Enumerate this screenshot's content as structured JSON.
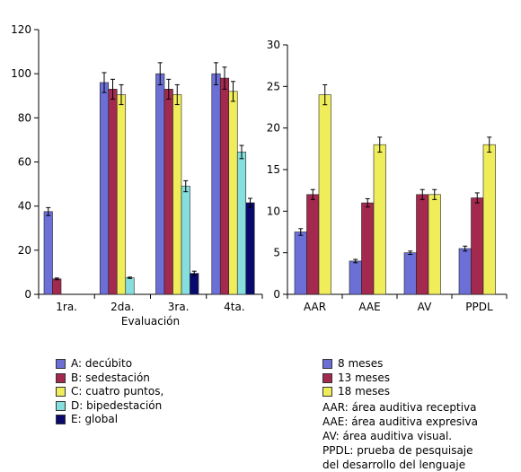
{
  "chart_data": [
    {
      "type": "bar",
      "categories": [
        "1ra.",
        "2da.",
        "3ra.",
        "4ta."
      ],
      "xlabel": "Evaluación",
      "ylabel": "",
      "ylim": [
        0,
        120
      ],
      "yticks": [
        0,
        20,
        40,
        60,
        80,
        100,
        120
      ],
      "grid": false,
      "series": [
        {
          "name": "A: decúbito",
          "color": "#6b6fd6",
          "values": [
            37.5,
            96,
            100,
            100
          ],
          "errors": [
            1.8,
            4.5,
            5,
            5
          ]
        },
        {
          "name": "B: sedestación",
          "color": "#a3294f",
          "values": [
            7,
            93,
            93,
            98
          ],
          "errors": [
            0.4,
            4.5,
            4.5,
            5
          ]
        },
        {
          "name": "C: cuatro puntos,",
          "color": "#f0ed5a",
          "values": [
            0,
            90.5,
            90.5,
            92
          ],
          "errors": [
            0,
            4.5,
            4.5,
            4.5
          ]
        },
        {
          "name": "D: bipedestación",
          "color": "#86dede",
          "values": [
            0,
            7.5,
            49,
            64.5
          ],
          "errors": [
            0,
            0.3,
            2.5,
            3
          ]
        },
        {
          "name": "E: global",
          "color": "#0a0a6e",
          "values": [
            0,
            0,
            9.5,
            41.5
          ],
          "errors": [
            0,
            0,
            1,
            2
          ]
        }
      ]
    },
    {
      "type": "bar",
      "categories": [
        "AAR",
        "AAE",
        "AV",
        "PPDL"
      ],
      "xlabel": "",
      "ylabel": "",
      "ylim": [
        0,
        30
      ],
      "yticks": [
        0,
        5,
        10,
        15,
        20,
        25,
        30
      ],
      "grid": false,
      "series": [
        {
          "name": "8 meses",
          "color": "#6b6fd6",
          "values": [
            7.5,
            4,
            5,
            5.5
          ],
          "errors": [
            0.4,
            0.2,
            0.2,
            0.3
          ]
        },
        {
          "name": "13 meses",
          "color": "#a3294f",
          "values": [
            12,
            11,
            12,
            11.6
          ],
          "errors": [
            0.6,
            0.5,
            0.6,
            0.6
          ]
        },
        {
          "name": "18 meses",
          "color": "#f0ed5a",
          "values": [
            24,
            18,
            12,
            18
          ],
          "errors": [
            1.2,
            0.9,
            0.6,
            0.9
          ]
        }
      ]
    }
  ],
  "abbreviations": [
    "AAR: área auditiva receptiva",
    "AAE: área auditiva expresiva",
    "AV: área auditiva visual.",
    "PPDL: prueba de pesquisaje",
    "del desarrollo del lenguaje"
  ]
}
